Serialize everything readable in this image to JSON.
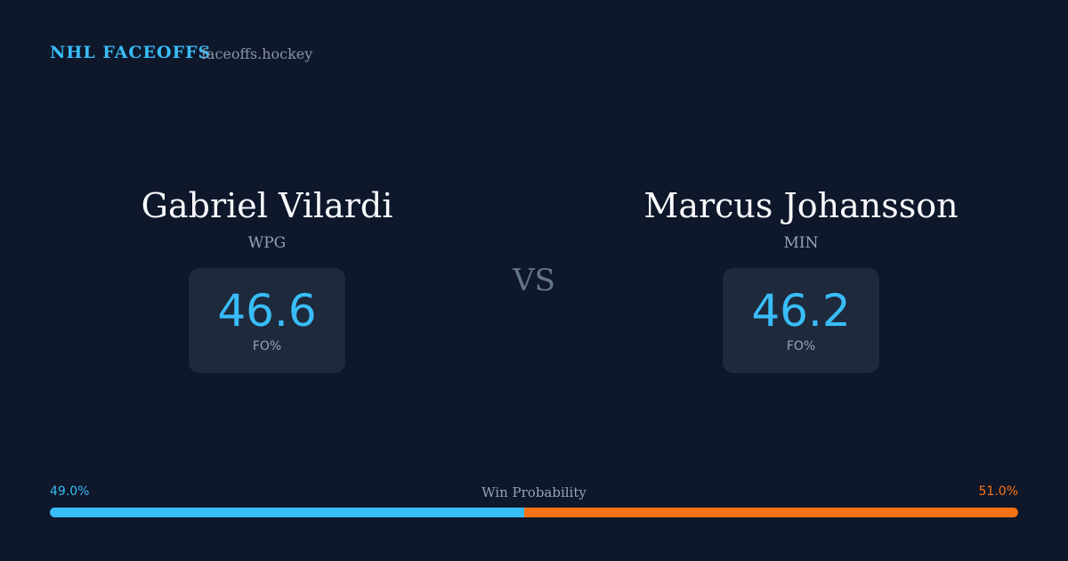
{
  "header": {
    "brand": "NHL FACEOFFS",
    "site": "faceoffs.hockey"
  },
  "players": [
    {
      "name": "Gabriel Vilardi",
      "team": "WPG",
      "stat": 46.6,
      "stat_label": "FO%"
    },
    {
      "name": "Marcus Johansson",
      "team": "MIN",
      "stat": 46.2,
      "stat_label": "FO%"
    }
  ],
  "vs": "VS",
  "win_probability": {
    "label": "Win Probability",
    "left": {
      "value": 49,
      "label": "49.0%",
      "color": "#38bdf8"
    },
    "right": {
      "value": 51,
      "label": "51.0%",
      "color": "#f97316"
    }
  }
}
